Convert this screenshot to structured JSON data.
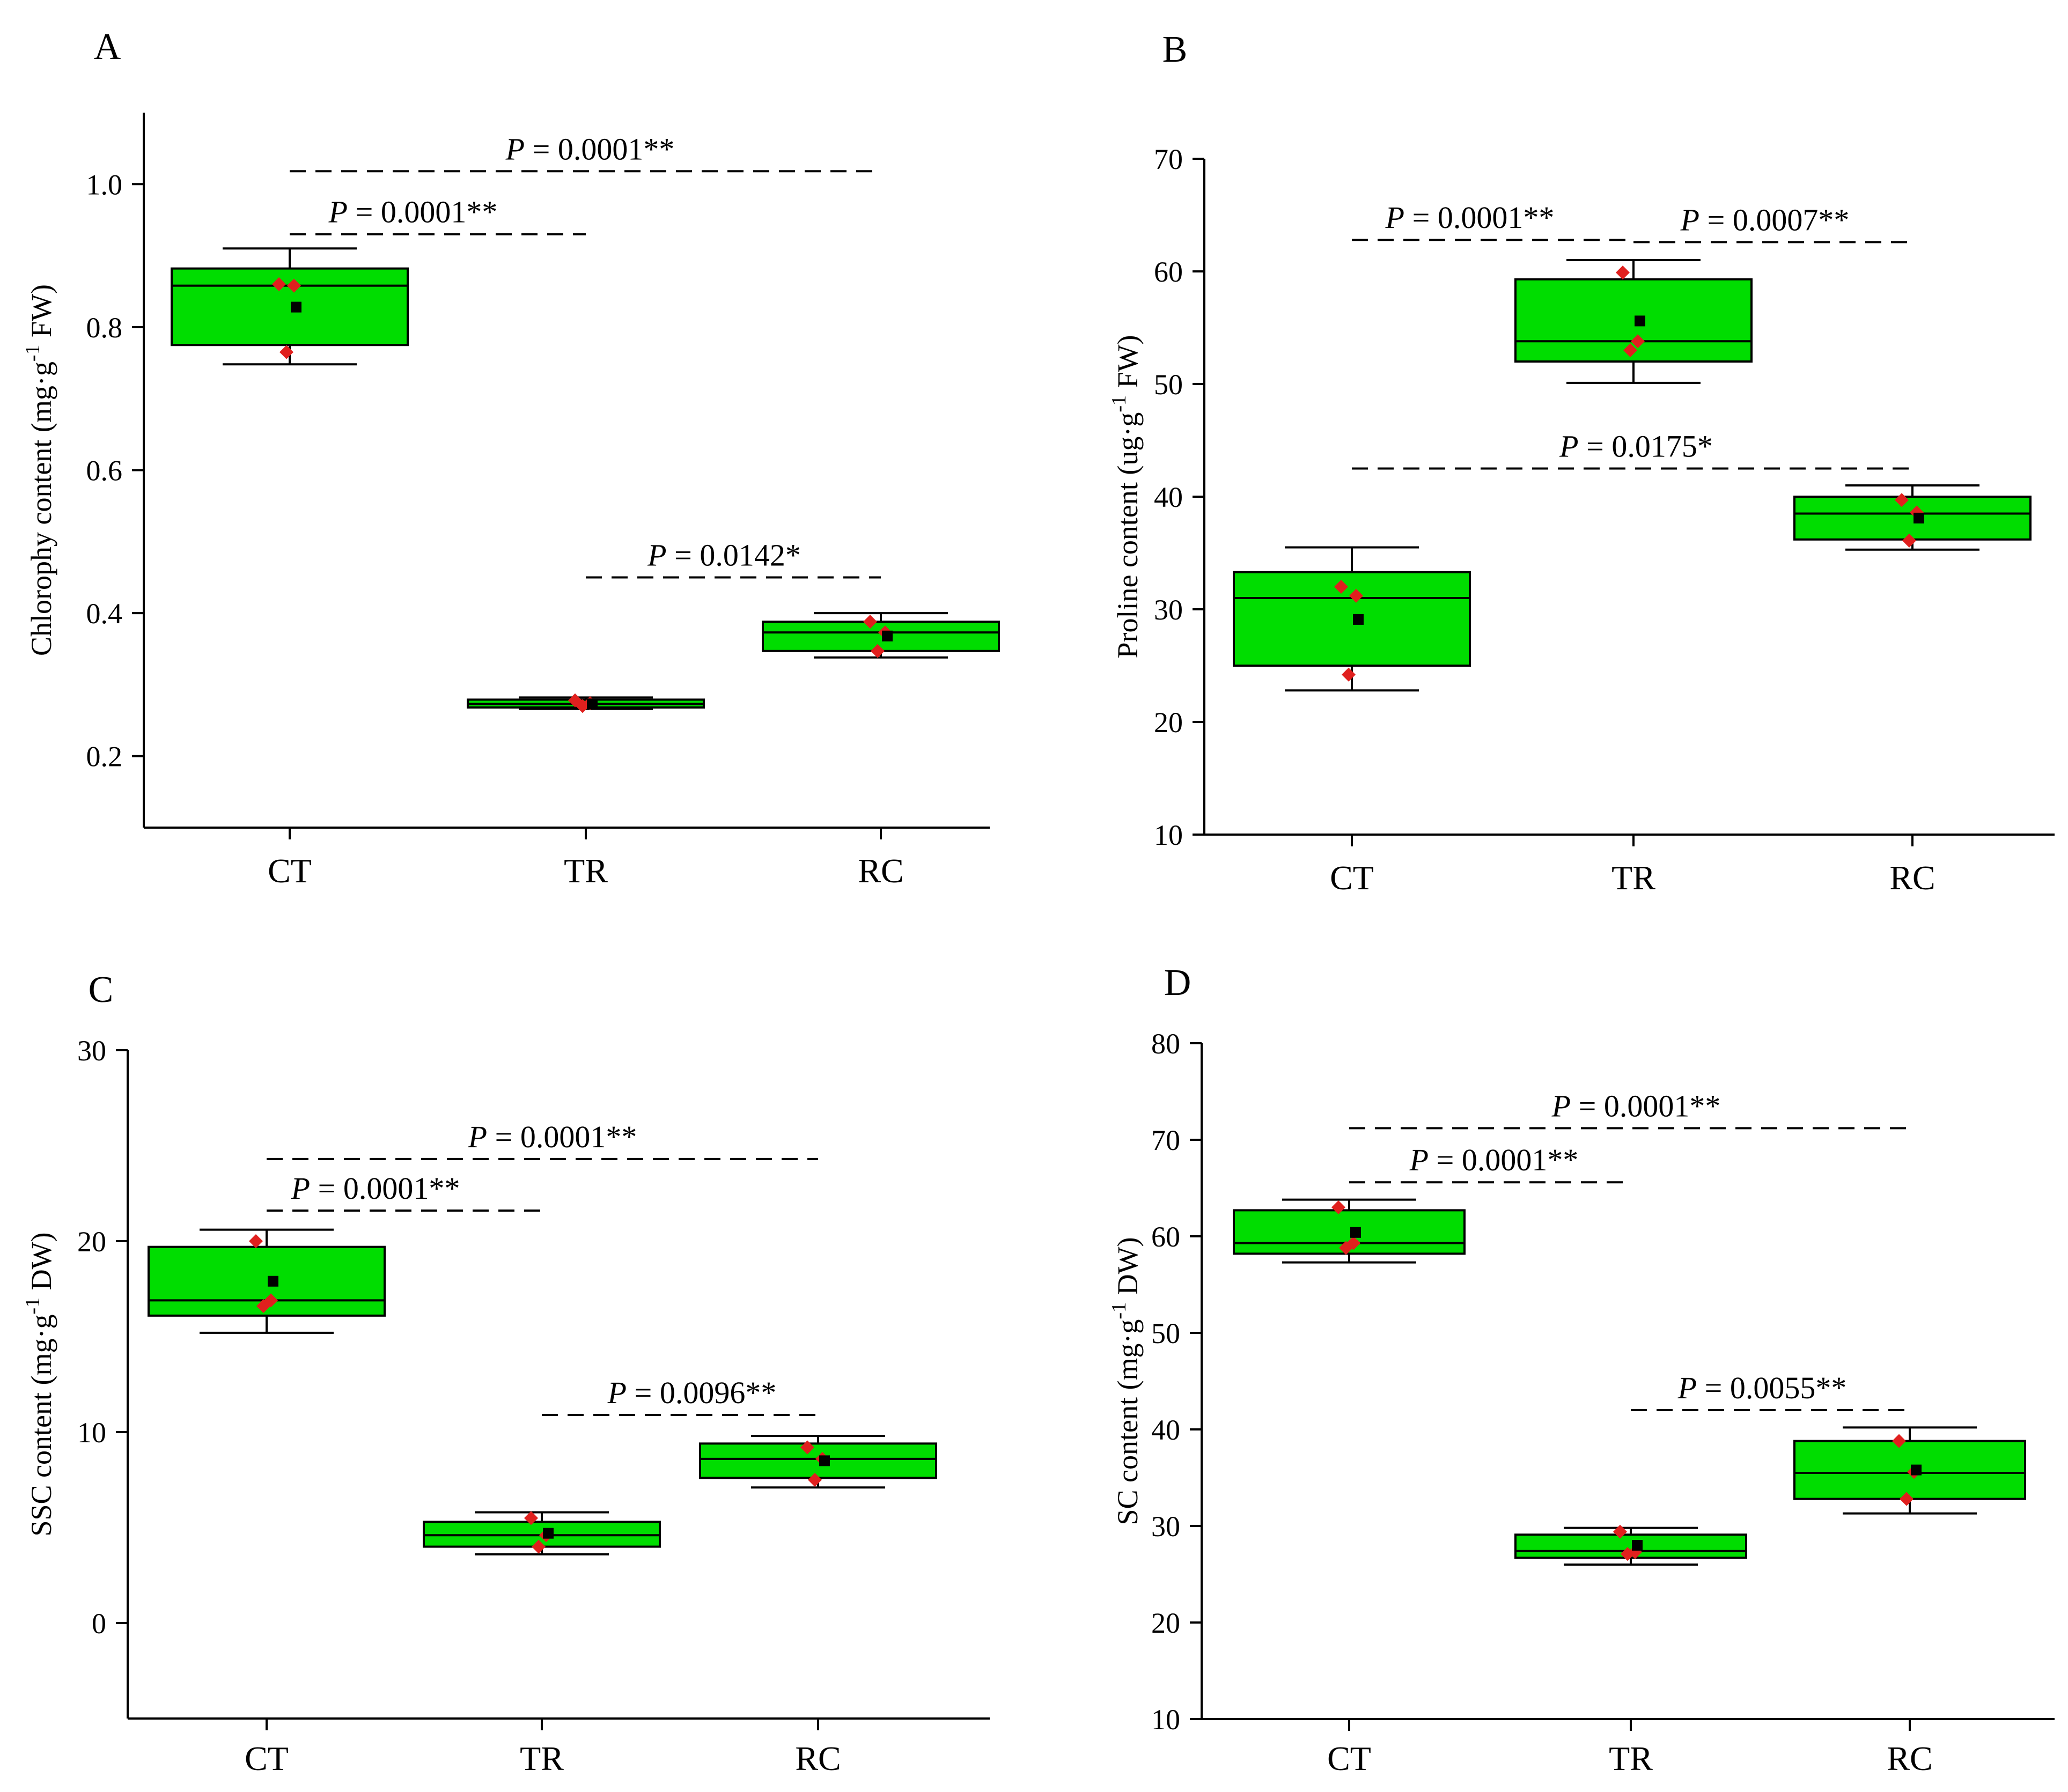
{
  "colors": {
    "box_fill": "#00dd00",
    "point": "#e0201e",
    "mean": "#000000",
    "axis": "#000000"
  },
  "chart_data": [
    {
      "panel": "A",
      "type": "box",
      "ylabel": "Chlorophy content (mg·g",
      "ylabel_sup": "-1",
      "ylabel_tail": " FW)",
      "categories": [
        "CT",
        "TR",
        "RC"
      ],
      "ylim": [
        0.1,
        1.1
      ],
      "yticks": [
        0.2,
        0.4,
        0.6,
        0.8,
        1.0
      ],
      "ytick_labels": [
        "0.2",
        "0.4",
        "0.6",
        "0.8",
        "1.0"
      ],
      "boxes": [
        {
          "q1": 0.775,
          "median": 0.858,
          "q3": 0.882,
          "whisker_low": 0.748,
          "whisker_high": 0.91,
          "mean": 0.828,
          "points": [
            0.86,
            0.858,
            0.765
          ]
        },
        {
          "q1": 0.268,
          "median": 0.273,
          "q3": 0.279,
          "whisker_low": 0.266,
          "whisker_high": 0.282,
          "mean": 0.273,
          "points": [
            0.278,
            0.274,
            0.27
          ]
        },
        {
          "q1": 0.347,
          "median": 0.373,
          "q3": 0.388,
          "whisker_low": 0.338,
          "whisker_high": 0.4,
          "mean": 0.368,
          "points": [
            0.388,
            0.373,
            0.347
          ]
        }
      ],
      "comparisons": [
        {
          "from": 0,
          "to": 2,
          "level": 1.018,
          "label": "P = 0.0001**"
        },
        {
          "from": 0,
          "to": 1,
          "level": 0.93,
          "label": "P = 0.0001**"
        },
        {
          "from": 1,
          "to": 2,
          "level": 0.45,
          "label": "P = 0.0142*"
        }
      ]
    },
    {
      "panel": "B",
      "type": "box",
      "ylabel": "Proline content (ug·g",
      "ylabel_sup": "-1",
      "ylabel_tail": " FW)",
      "categories": [
        "CT",
        "TR",
        "RC"
      ],
      "ylim": [
        10,
        70
      ],
      "yticks": [
        10,
        20,
        30,
        40,
        50,
        60,
        70
      ],
      "ytick_labels": [
        "10",
        "20",
        "30",
        "40",
        "50",
        "60",
        "70"
      ],
      "boxes": [
        {
          "q1": 25.0,
          "median": 31.0,
          "q3": 33.3,
          "whisker_low": 22.8,
          "whisker_high": 35.5,
          "mean": 29.1,
          "points": [
            32.0,
            31.2,
            24.2
          ]
        },
        {
          "q1": 52.0,
          "median": 53.8,
          "q3": 59.3,
          "whisker_low": 50.1,
          "whisker_high": 61.0,
          "mean": 55.6,
          "points": [
            59.9,
            53.8,
            53.0
          ]
        },
        {
          "q1": 36.2,
          "median": 38.5,
          "q3": 40.0,
          "whisker_low": 35.3,
          "whisker_high": 41.0,
          "mean": 38.1,
          "points": [
            39.7,
            38.6,
            36.1
          ]
        }
      ],
      "comparisons": [
        {
          "from": 0,
          "to": 1,
          "level": 62.8,
          "label": "P = 0.0001**"
        },
        {
          "from": 1,
          "to": 2,
          "level": 62.6,
          "label": "P = 0.0007**"
        },
        {
          "from": 0,
          "to": 2,
          "level": 42.5,
          "label": "P = 0.0175*"
        }
      ]
    },
    {
      "panel": "C",
      "type": "box",
      "ylabel": "SSC content (mg·g",
      "ylabel_sup": "-1",
      "ylabel_tail": " DW)",
      "categories": [
        "CT",
        "TR",
        "RC"
      ],
      "ylim": [
        -5,
        30
      ],
      "yticks": [
        0,
        10,
        20,
        30
      ],
      "ytick_labels": [
        "0",
        "10",
        "20",
        "30"
      ],
      "boxes": [
        {
          "q1": 16.1,
          "median": 16.9,
          "q3": 19.7,
          "whisker_low": 15.2,
          "whisker_high": 20.6,
          "mean": 17.9,
          "points": [
            20.0,
            16.9,
            16.6
          ]
        },
        {
          "q1": 4.0,
          "median": 4.6,
          "q3": 5.3,
          "whisker_low": 3.6,
          "whisker_high": 5.8,
          "mean": 4.7,
          "points": [
            5.5,
            4.6,
            4.0
          ]
        },
        {
          "q1": 7.6,
          "median": 8.6,
          "q3": 9.4,
          "whisker_low": 7.1,
          "whisker_high": 9.8,
          "mean": 8.5,
          "points": [
            9.2,
            8.6,
            7.5
          ]
        }
      ],
      "comparisons": [
        {
          "from": 0,
          "to": 2,
          "level": 24.3,
          "label": "P = 0.0001**"
        },
        {
          "from": 0,
          "to": 1,
          "level": 21.6,
          "label": "P = 0.0001**"
        },
        {
          "from": 1,
          "to": 2,
          "level": 10.9,
          "label": "P = 0.0096**"
        }
      ]
    },
    {
      "panel": "D",
      "type": "box",
      "ylabel": "SC content (mg·g",
      "ylabel_sup": "-1",
      "ylabel_tail": " DW)",
      "categories": [
        "CT",
        "TR",
        "RC"
      ],
      "ylim": [
        10,
        80
      ],
      "yticks": [
        10,
        20,
        30,
        40,
        50,
        60,
        70,
        80
      ],
      "ytick_labels": [
        "10",
        "20",
        "30",
        "40",
        "50",
        "60",
        "70",
        "80"
      ],
      "boxes": [
        {
          "q1": 58.2,
          "median": 59.3,
          "q3": 62.7,
          "whisker_low": 57.3,
          "whisker_high": 63.8,
          "mean": 60.4,
          "points": [
            63.0,
            59.3,
            58.8
          ]
        },
        {
          "q1": 26.7,
          "median": 27.4,
          "q3": 29.1,
          "whisker_low": 26.0,
          "whisker_high": 29.8,
          "mean": 28.0,
          "points": [
            29.4,
            27.3,
            27.1
          ]
        },
        {
          "q1": 32.8,
          "median": 35.5,
          "q3": 38.8,
          "whisker_low": 31.3,
          "whisker_high": 40.2,
          "mean": 35.8,
          "points": [
            38.8,
            35.6,
            32.8
          ]
        }
      ],
      "comparisons": [
        {
          "from": 0,
          "to": 2,
          "level": 71.2,
          "label": "P = 0.0001**"
        },
        {
          "from": 0,
          "to": 1,
          "level": 65.6,
          "label": "P = 0.0001**"
        },
        {
          "from": 1,
          "to": 2,
          "level": 42.0,
          "label": "P = 0.0055**"
        }
      ]
    }
  ]
}
